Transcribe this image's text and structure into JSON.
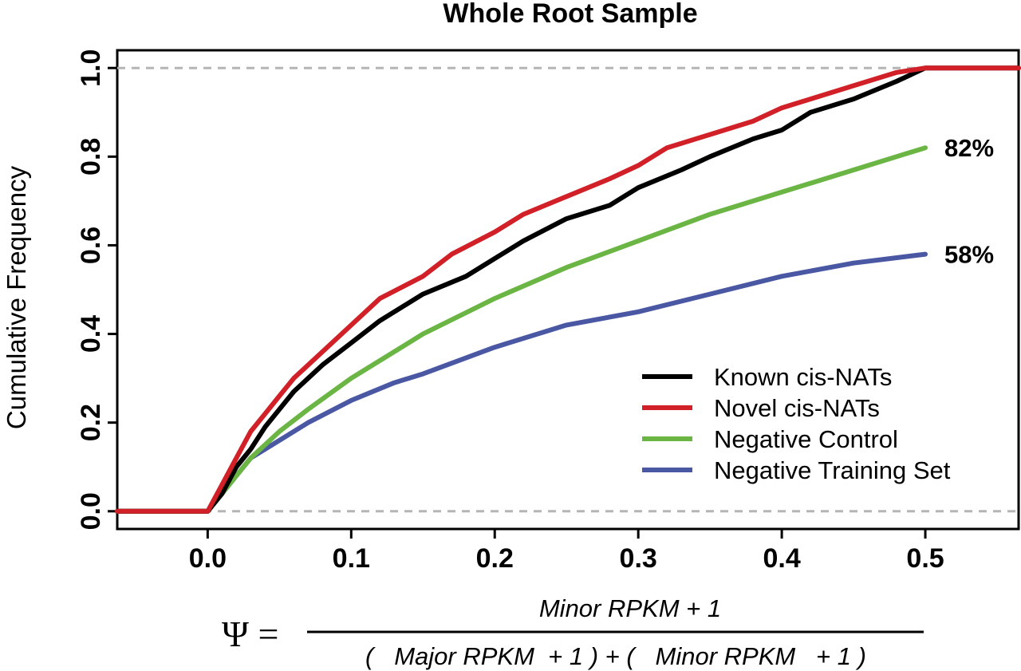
{
  "chart_data": {
    "type": "line",
    "title": "Whole Root Sample",
    "xlabel": "",
    "ylabel": "Cumulative Frequency",
    "xlim": [
      -0.063,
      0.565
    ],
    "ylim": [
      -0.04,
      1.04
    ],
    "xticks": [
      "0.0",
      "0.1",
      "0.2",
      "0.3",
      "0.4",
      "0.5"
    ],
    "yticks": [
      "0.0",
      "0.2",
      "0.4",
      "0.6",
      "0.8",
      "1.0"
    ],
    "reference_lines": [
      0.0,
      1.0
    ],
    "legend_position": "bottom-right",
    "series": [
      {
        "name": "Known cis-NATs",
        "color": "#000000",
        "x": [
          -0.063,
          0.0,
          0.01,
          0.02,
          0.03,
          0.04,
          0.05,
          0.06,
          0.08,
          0.1,
          0.12,
          0.15,
          0.18,
          0.2,
          0.22,
          0.25,
          0.28,
          0.3,
          0.33,
          0.35,
          0.38,
          0.4,
          0.42,
          0.45,
          0.48,
          0.5,
          0.565
        ],
        "y": [
          0.0,
          0.0,
          0.04,
          0.1,
          0.14,
          0.19,
          0.23,
          0.27,
          0.33,
          0.38,
          0.43,
          0.49,
          0.53,
          0.57,
          0.61,
          0.66,
          0.69,
          0.73,
          0.77,
          0.8,
          0.84,
          0.86,
          0.9,
          0.93,
          0.97,
          1.0,
          1.0
        ]
      },
      {
        "name": "Novel cis-NATs",
        "color": "#d12027",
        "x": [
          -0.063,
          0.0,
          0.01,
          0.02,
          0.03,
          0.04,
          0.05,
          0.06,
          0.08,
          0.1,
          0.12,
          0.15,
          0.17,
          0.2,
          0.22,
          0.25,
          0.28,
          0.3,
          0.32,
          0.35,
          0.38,
          0.4,
          0.42,
          0.45,
          0.48,
          0.5,
          0.565
        ],
        "y": [
          0.0,
          0.0,
          0.06,
          0.12,
          0.18,
          0.22,
          0.26,
          0.3,
          0.36,
          0.42,
          0.48,
          0.53,
          0.58,
          0.63,
          0.67,
          0.71,
          0.75,
          0.78,
          0.82,
          0.85,
          0.88,
          0.91,
          0.93,
          0.96,
          0.99,
          1.0,
          1.0
        ]
      },
      {
        "name": "Negative Control",
        "color": "#6ab544",
        "x": [
          -0.063,
          0.0,
          0.01,
          0.02,
          0.03,
          0.05,
          0.07,
          0.1,
          0.13,
          0.15,
          0.2,
          0.25,
          0.3,
          0.35,
          0.4,
          0.45,
          0.5
        ],
        "y": [
          0.0,
          0.0,
          0.04,
          0.08,
          0.12,
          0.18,
          0.23,
          0.3,
          0.36,
          0.4,
          0.48,
          0.55,
          0.61,
          0.67,
          0.72,
          0.77,
          0.82
        ]
      },
      {
        "name": "Negative Training Set",
        "color": "#4a58a4",
        "x": [
          -0.063,
          0.0,
          0.01,
          0.02,
          0.03,
          0.05,
          0.07,
          0.1,
          0.13,
          0.15,
          0.2,
          0.25,
          0.3,
          0.35,
          0.4,
          0.45,
          0.5
        ],
        "y": [
          0.0,
          0.0,
          0.04,
          0.08,
          0.12,
          0.16,
          0.2,
          0.25,
          0.29,
          0.31,
          0.37,
          0.42,
          0.45,
          0.49,
          0.53,
          0.56,
          0.58
        ]
      }
    ],
    "annotations": [
      {
        "text": "82%",
        "x": 0.5,
        "y": 0.82
      },
      {
        "text": "58%",
        "x": 0.5,
        "y": 0.58
      }
    ],
    "formula": {
      "lhs": "Ψ =",
      "numerator": "Minor RPKM + 1",
      "denominator": "(   Major RPKM  + 1 ) + (   Minor RPKM   + 1 )"
    }
  }
}
